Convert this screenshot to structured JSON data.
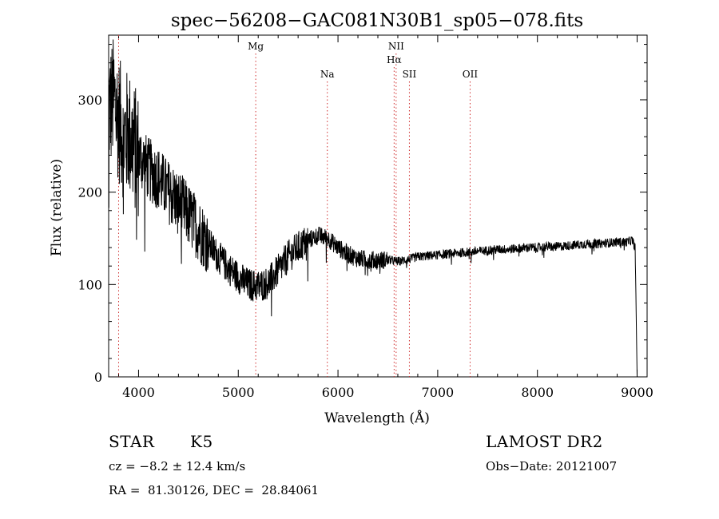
{
  "chart_data": {
    "type": "line",
    "title": "spec−56208−GAC081N30B1_sp05−078.fits",
    "xlabel": "Wavelength (Å)",
    "ylabel": "Flux (relative)",
    "xlim": [
      3700,
      9100
    ],
    "ylim": [
      0,
      370
    ],
    "xticks": [
      4000,
      5000,
      6000,
      7000,
      8000,
      9000
    ],
    "yticks": [
      0,
      100,
      200,
      300
    ],
    "grid": false,
    "line_color": "#000000",
    "marker_color": "#d03030",
    "lines": [
      {
        "label": "Mg",
        "x": 5175,
        "row": 0
      },
      {
        "label": "Na",
        "x": 5893,
        "row": 2
      },
      {
        "label": "NII",
        "x": 6583,
        "row": 0
      },
      {
        "label": "Hα",
        "x": 6563,
        "row": 1
      },
      {
        "label": "SII",
        "x": 6716,
        "row": 2
      },
      {
        "label": "OII",
        "x": 7325,
        "row": 2
      },
      {
        "label": "",
        "x": 3800,
        "row": 1
      }
    ],
    "spectrum": {
      "x": [
        3700,
        3750,
        3800,
        3850,
        3900,
        3950,
        4000,
        4100,
        4200,
        4300,
        4400,
        4500,
        4600,
        4700,
        4800,
        4900,
        5000,
        5100,
        5200,
        5300,
        5400,
        5500,
        5600,
        5700,
        5800,
        5900,
        6000,
        6100,
        6200,
        6300,
        6400,
        6500,
        6600,
        6700,
        6800,
        6900,
        7000,
        7100,
        7200,
        7300,
        7400,
        7500,
        7600,
        7700,
        7800,
        7900,
        8000,
        8100,
        8200,
        8300,
        8400,
        8500,
        8600,
        8700,
        8800,
        8900,
        8950,
        8980,
        9000
      ],
      "y": [
        290,
        300,
        280,
        260,
        265,
        250,
        240,
        225,
        215,
        200,
        190,
        175,
        160,
        145,
        130,
        118,
        108,
        100,
        98,
        102,
        115,
        130,
        140,
        148,
        153,
        150,
        140,
        133,
        128,
        127,
        126,
        127,
        125,
        127,
        130,
        131,
        132,
        133,
        134,
        135,
        136,
        137,
        138,
        138,
        139,
        140,
        140,
        141,
        141,
        142,
        143,
        144,
        144,
        145,
        146,
        146,
        148,
        140,
        0
      ]
    }
  },
  "footer": {
    "class_label": "STAR",
    "subclass": "K5",
    "survey": "LAMOST DR2",
    "cz": "cz = −8.2 ± 12.4 km/s",
    "obs_date": "Obs−Date: 20121007",
    "coords": "RA =  81.30126, DEC =  28.84061"
  }
}
